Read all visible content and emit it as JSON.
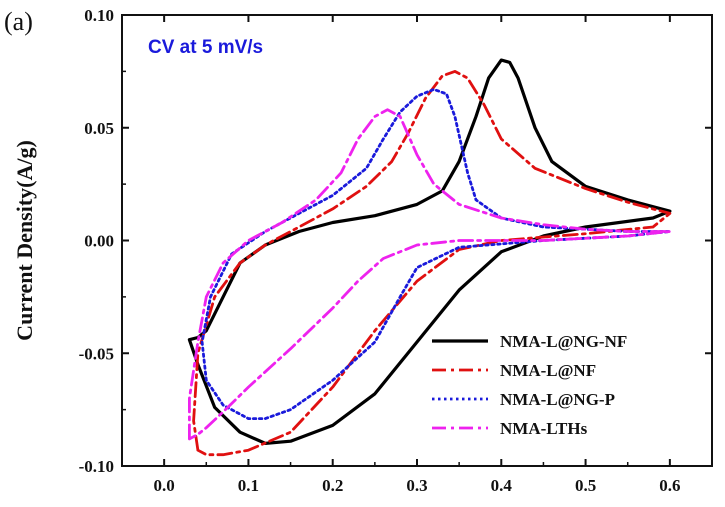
{
  "chart_data": {
    "type": "line",
    "panel_label": "(a)",
    "title": "",
    "annotation": {
      "text": "CV at 5 mV/s",
      "color": "#1a1adb"
    },
    "xlabel": "",
    "ylabel": "Current Density(A/g)",
    "xlim": [
      -0.05,
      0.65
    ],
    "ylim": [
      -0.1,
      0.1
    ],
    "x_ticks": [
      0.0,
      0.1,
      0.2,
      0.3,
      0.4,
      0.5,
      0.6
    ],
    "x_tick_labels": [
      "0.0",
      "0.1",
      "0.2",
      "0.3",
      "0.4",
      "0.5",
      "0.6"
    ],
    "y_ticks": [
      -0.1,
      -0.05,
      0.0,
      0.05,
      0.1
    ],
    "y_tick_labels": [
      "-0.10",
      "-0.05",
      "0.00",
      "0.05",
      "0.10"
    ],
    "grid": false,
    "legend_position": "bottom-right",
    "series": [
      {
        "name": "NMA-L@NG-NF",
        "color": "#000000",
        "dash": "solid",
        "points": [
          [
            0.03,
            -0.044
          ],
          [
            0.04,
            -0.043
          ],
          [
            0.05,
            -0.04
          ],
          [
            0.07,
            -0.025
          ],
          [
            0.09,
            -0.01
          ],
          [
            0.12,
            -0.002
          ],
          [
            0.16,
            0.004
          ],
          [
            0.2,
            0.008
          ],
          [
            0.25,
            0.011
          ],
          [
            0.3,
            0.016
          ],
          [
            0.33,
            0.022
          ],
          [
            0.35,
            0.035
          ],
          [
            0.37,
            0.055
          ],
          [
            0.385,
            0.072
          ],
          [
            0.4,
            0.08
          ],
          [
            0.41,
            0.079
          ],
          [
            0.42,
            0.072
          ],
          [
            0.44,
            0.05
          ],
          [
            0.46,
            0.035
          ],
          [
            0.5,
            0.024
          ],
          [
            0.55,
            0.018
          ],
          [
            0.6,
            0.013
          ],
          [
            0.58,
            0.01
          ],
          [
            0.5,
            0.006
          ],
          [
            0.45,
            0.002
          ],
          [
            0.4,
            -0.005
          ],
          [
            0.35,
            -0.022
          ],
          [
            0.3,
            -0.045
          ],
          [
            0.25,
            -0.068
          ],
          [
            0.2,
            -0.082
          ],
          [
            0.15,
            -0.089
          ],
          [
            0.12,
            -0.09
          ],
          [
            0.09,
            -0.085
          ],
          [
            0.06,
            -0.074
          ],
          [
            0.04,
            -0.055
          ],
          [
            0.03,
            -0.044
          ]
        ]
      },
      {
        "name": "NMA-L@NF",
        "color": "#e01010",
        "dash": "dash-dot",
        "points": [
          [
            0.04,
            -0.093
          ],
          [
            0.035,
            -0.08
          ],
          [
            0.04,
            -0.05
          ],
          [
            0.06,
            -0.025
          ],
          [
            0.09,
            -0.01
          ],
          [
            0.12,
            -0.002
          ],
          [
            0.16,
            0.006
          ],
          [
            0.2,
            0.014
          ],
          [
            0.24,
            0.024
          ],
          [
            0.27,
            0.035
          ],
          [
            0.29,
            0.048
          ],
          [
            0.31,
            0.063
          ],
          [
            0.33,
            0.073
          ],
          [
            0.345,
            0.075
          ],
          [
            0.36,
            0.072
          ],
          [
            0.38,
            0.06
          ],
          [
            0.4,
            0.045
          ],
          [
            0.44,
            0.032
          ],
          [
            0.5,
            0.023
          ],
          [
            0.55,
            0.017
          ],
          [
            0.6,
            0.012
          ],
          [
            0.58,
            0.006
          ],
          [
            0.5,
            0.003
          ],
          [
            0.4,
            0.0
          ],
          [
            0.35,
            -0.004
          ],
          [
            0.3,
            -0.018
          ],
          [
            0.25,
            -0.04
          ],
          [
            0.2,
            -0.065
          ],
          [
            0.15,
            -0.085
          ],
          [
            0.1,
            -0.093
          ],
          [
            0.07,
            -0.095
          ],
          [
            0.05,
            -0.095
          ],
          [
            0.04,
            -0.093
          ]
        ]
      },
      {
        "name": "NMA-L@NG-P",
        "color": "#1a1adb",
        "dash": "dotted",
        "points": [
          [
            0.05,
            -0.062
          ],
          [
            0.045,
            -0.045
          ],
          [
            0.055,
            -0.025
          ],
          [
            0.08,
            -0.006
          ],
          [
            0.12,
            0.004
          ],
          [
            0.16,
            0.012
          ],
          [
            0.2,
            0.02
          ],
          [
            0.24,
            0.032
          ],
          [
            0.26,
            0.045
          ],
          [
            0.28,
            0.057
          ],
          [
            0.3,
            0.064
          ],
          [
            0.32,
            0.067
          ],
          [
            0.335,
            0.065
          ],
          [
            0.345,
            0.055
          ],
          [
            0.36,
            0.03
          ],
          [
            0.37,
            0.018
          ],
          [
            0.4,
            0.01
          ],
          [
            0.45,
            0.006
          ],
          [
            0.5,
            0.005
          ],
          [
            0.55,
            0.004
          ],
          [
            0.6,
            0.004
          ],
          [
            0.55,
            0.002
          ],
          [
            0.45,
            0.0
          ],
          [
            0.35,
            -0.003
          ],
          [
            0.3,
            -0.012
          ],
          [
            0.28,
            -0.025
          ],
          [
            0.25,
            -0.045
          ],
          [
            0.2,
            -0.062
          ],
          [
            0.15,
            -0.075
          ],
          [
            0.12,
            -0.079
          ],
          [
            0.1,
            -0.079
          ],
          [
            0.07,
            -0.073
          ],
          [
            0.05,
            -0.062
          ]
        ]
      },
      {
        "name": "NMA-LTHs",
        "color": "#ee22ee",
        "dash": "dash-dot",
        "points": [
          [
            0.03,
            -0.088
          ],
          [
            0.03,
            -0.07
          ],
          [
            0.04,
            -0.045
          ],
          [
            0.05,
            -0.025
          ],
          [
            0.07,
            -0.01
          ],
          [
            0.1,
            0.0
          ],
          [
            0.14,
            0.008
          ],
          [
            0.18,
            0.018
          ],
          [
            0.21,
            0.03
          ],
          [
            0.23,
            0.045
          ],
          [
            0.25,
            0.055
          ],
          [
            0.265,
            0.058
          ],
          [
            0.28,
            0.055
          ],
          [
            0.3,
            0.038
          ],
          [
            0.32,
            0.025
          ],
          [
            0.35,
            0.016
          ],
          [
            0.4,
            0.01
          ],
          [
            0.45,
            0.007
          ],
          [
            0.5,
            0.005
          ],
          [
            0.55,
            0.004
          ],
          [
            0.6,
            0.004
          ],
          [
            0.55,
            0.002
          ],
          [
            0.45,
            0.0
          ],
          [
            0.35,
            0.0
          ],
          [
            0.3,
            -0.002
          ],
          [
            0.26,
            -0.008
          ],
          [
            0.23,
            -0.018
          ],
          [
            0.2,
            -0.03
          ],
          [
            0.15,
            -0.048
          ],
          [
            0.1,
            -0.065
          ],
          [
            0.07,
            -0.076
          ],
          [
            0.05,
            -0.083
          ],
          [
            0.04,
            -0.086
          ],
          [
            0.03,
            -0.088
          ]
        ]
      }
    ]
  }
}
